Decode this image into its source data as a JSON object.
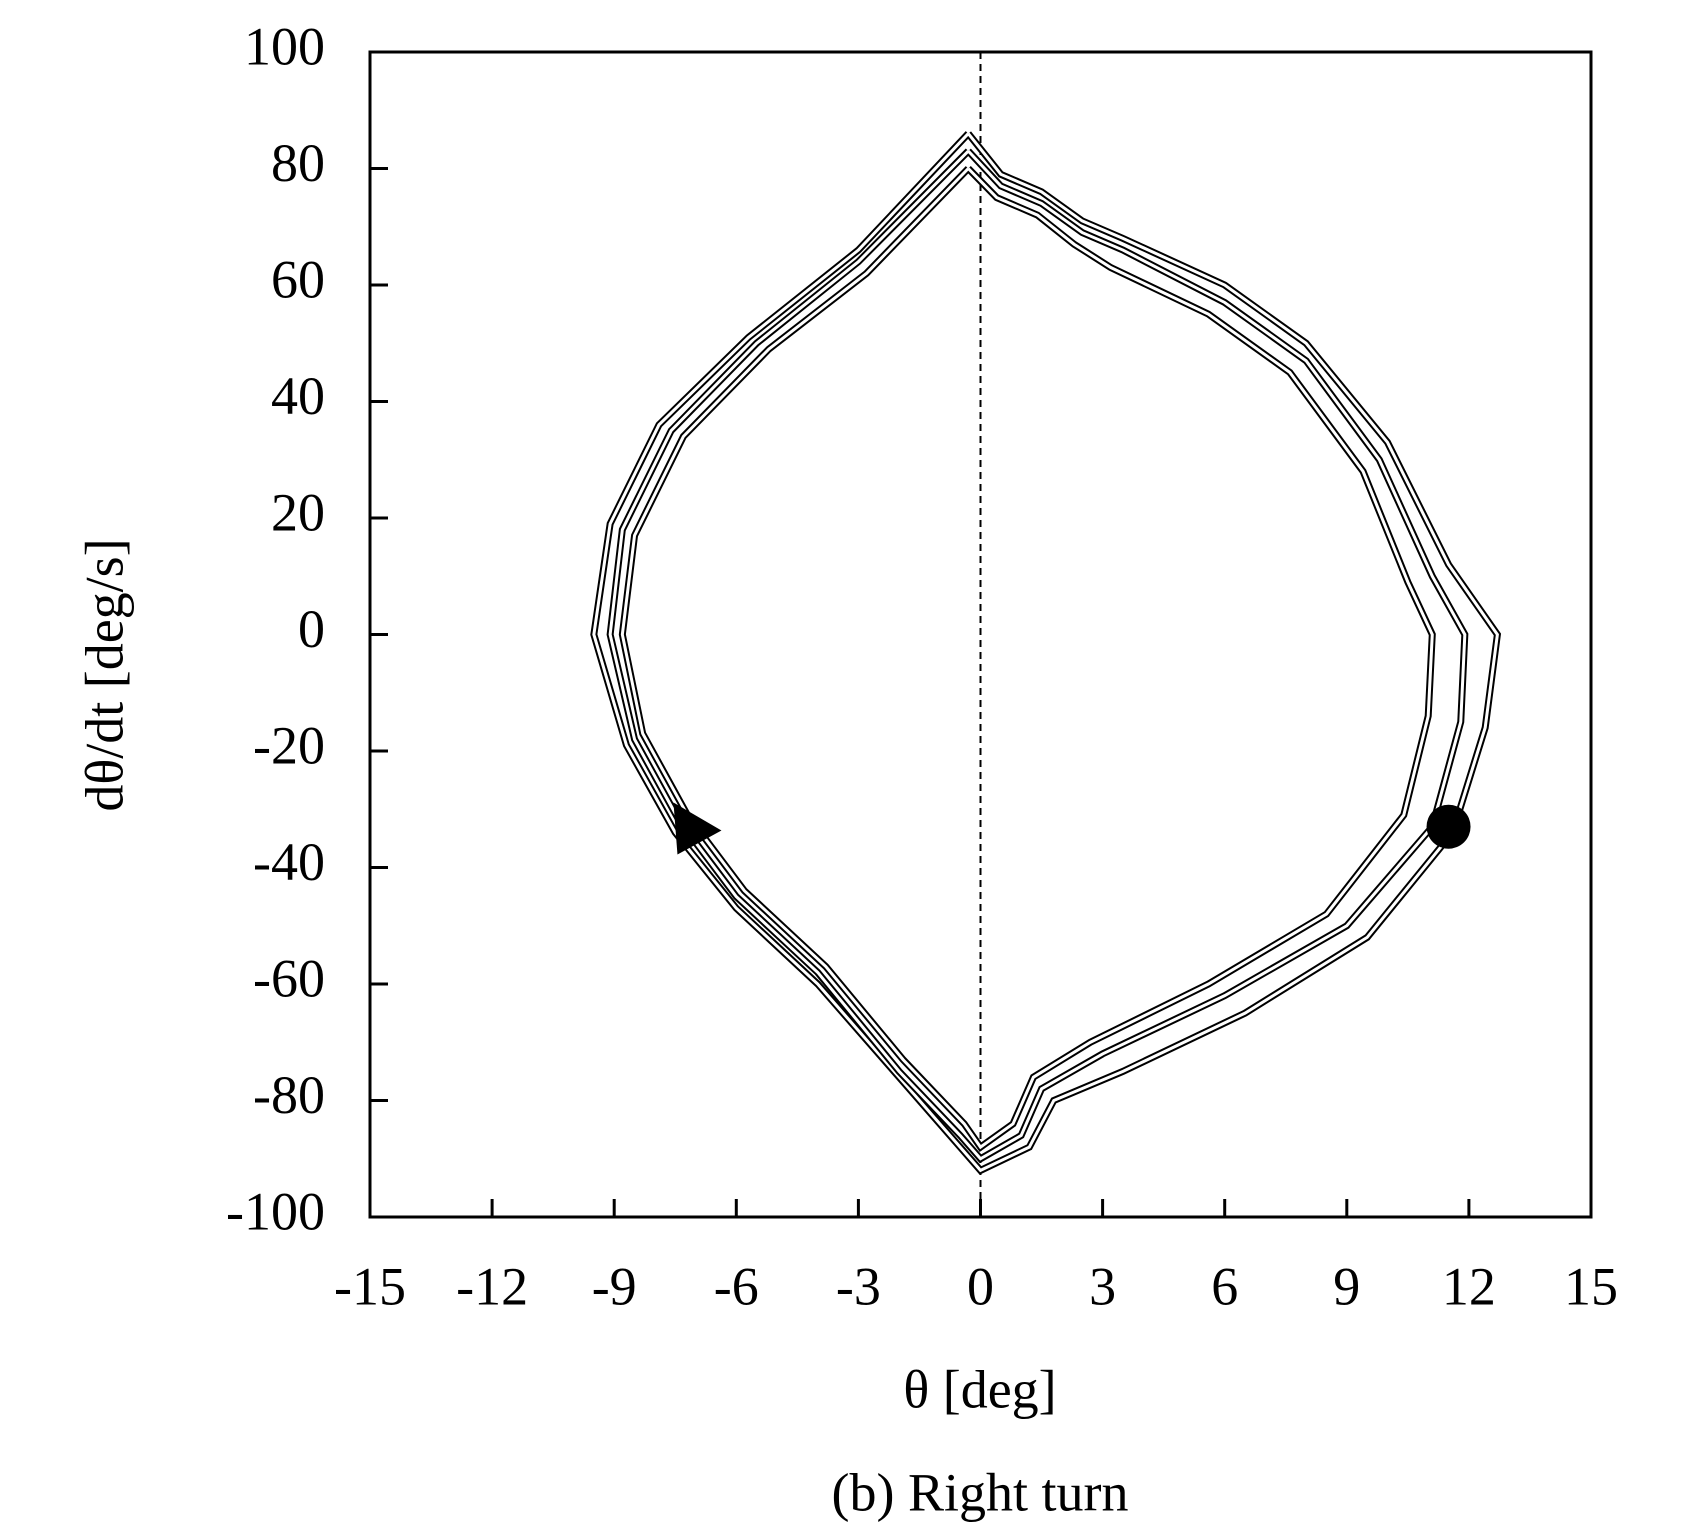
{
  "chart_data": {
    "type": "line",
    "x_label": "θ [deg]",
    "y_label": "dθ/dt [deg/s]",
    "caption": "(b) Right turn",
    "xlim": [
      -15,
      15
    ],
    "xticks": [
      -15,
      -12,
      -9,
      -6,
      -3,
      0,
      3,
      6,
      9,
      12,
      15
    ],
    "ylim": [
      -100,
      100
    ],
    "yticks": [
      -100,
      -80,
      -60,
      -40,
      -20,
      0,
      20,
      40,
      60,
      80,
      100
    ],
    "vline": 0,
    "series": [
      {
        "color": "#000000",
        "x": [
          -0.3,
          0.5,
          1.5,
          2.5,
          3.5,
          6,
          8,
          10,
          11.5,
          12.7,
          12.4,
          11.6,
          9.5,
          6.5,
          3.5,
          1.8,
          1.2,
          0,
          -0.5,
          -2,
          -4,
          -6,
          -7.5,
          -8.7,
          -9.5,
          -9.1,
          -7.9,
          -5.7,
          -3,
          -0.3
        ],
        "values": [
          86,
          79,
          76,
          71,
          68,
          60,
          50,
          33,
          12,
          0,
          -16,
          -34,
          -52,
          -65,
          -75,
          -80,
          -88,
          -92,
          -88,
          -76,
          -60,
          -47,
          -34,
          -19,
          0,
          19,
          36,
          51,
          66,
          86
        ]
      },
      {
        "color": "#000000",
        "x": [
          -0.3,
          0.5,
          1.5,
          2.5,
          3.5,
          6,
          8,
          9.8,
          11.1,
          11.9,
          11.8,
          11.1,
          9,
          6,
          3,
          1.5,
          1,
          0,
          -0.5,
          -2,
          -4,
          -6,
          -7.4,
          -8.5,
          -9.1,
          -8.8,
          -7.6,
          -5.5,
          -3,
          -0.3
        ],
        "values": [
          83,
          77,
          74,
          69,
          66,
          57,
          47,
          30,
          10,
          0,
          -15,
          -33,
          -50,
          -62,
          -72,
          -78,
          -86,
          -90,
          -86,
          -75,
          -58,
          -45,
          -32,
          -18,
          0,
          18,
          35,
          50,
          64,
          83
        ]
      },
      {
        "color": "#000000",
        "x": [
          -0.3,
          0.4,
          1.4,
          2.3,
          3.2,
          5.6,
          7.6,
          9.4,
          10.5,
          11.1,
          11,
          10.4,
          8.5,
          5.6,
          2.7,
          1.3,
          0.8,
          0,
          -0.4,
          -1.9,
          -3.8,
          -5.8,
          -7.2,
          -8.3,
          -8.8,
          -8.5,
          -7.3,
          -5.2,
          -2.8,
          -0.3
        ],
        "values": [
          80,
          75,
          72,
          67,
          63,
          55,
          45,
          28,
          9,
          0,
          -14,
          -31,
          -48,
          -60,
          -70,
          -76,
          -84,
          -88,
          -84,
          -73,
          -57,
          -44,
          -31,
          -17,
          0,
          17,
          34,
          49,
          62,
          80
        ]
      }
    ],
    "markers": [
      {
        "shape": "triangle",
        "x": -7.2,
        "y": -34,
        "color": "#000000"
      },
      {
        "shape": "circle",
        "x": 11.5,
        "y": -33,
        "color": "#000000"
      }
    ]
  }
}
